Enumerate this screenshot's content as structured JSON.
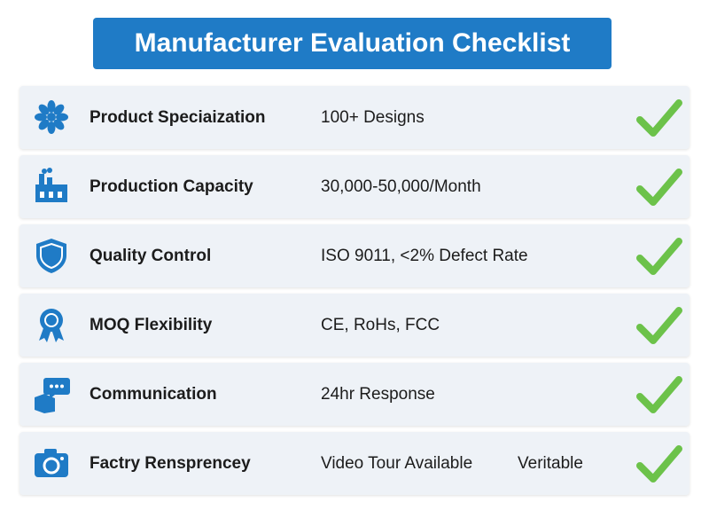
{
  "header": {
    "title": "Manufacturer Evaluation Checklist"
  },
  "rows": [
    {
      "label": "Product Speciaization",
      "value": "100+ Designs"
    },
    {
      "label": "Production Capacity",
      "value": "30,000-50,000/Month"
    },
    {
      "label": "Quality Control",
      "value": "ISO 9011, <2% Defect Rate"
    },
    {
      "label": "MOQ Flexibility",
      "value": "CE, RoHs, FCC"
    },
    {
      "label": "Communication",
      "value": "24hr Response"
    },
    {
      "label": "Factry Rensprencey",
      "value": "Video Tour Available",
      "note": "Veritable"
    }
  ]
}
